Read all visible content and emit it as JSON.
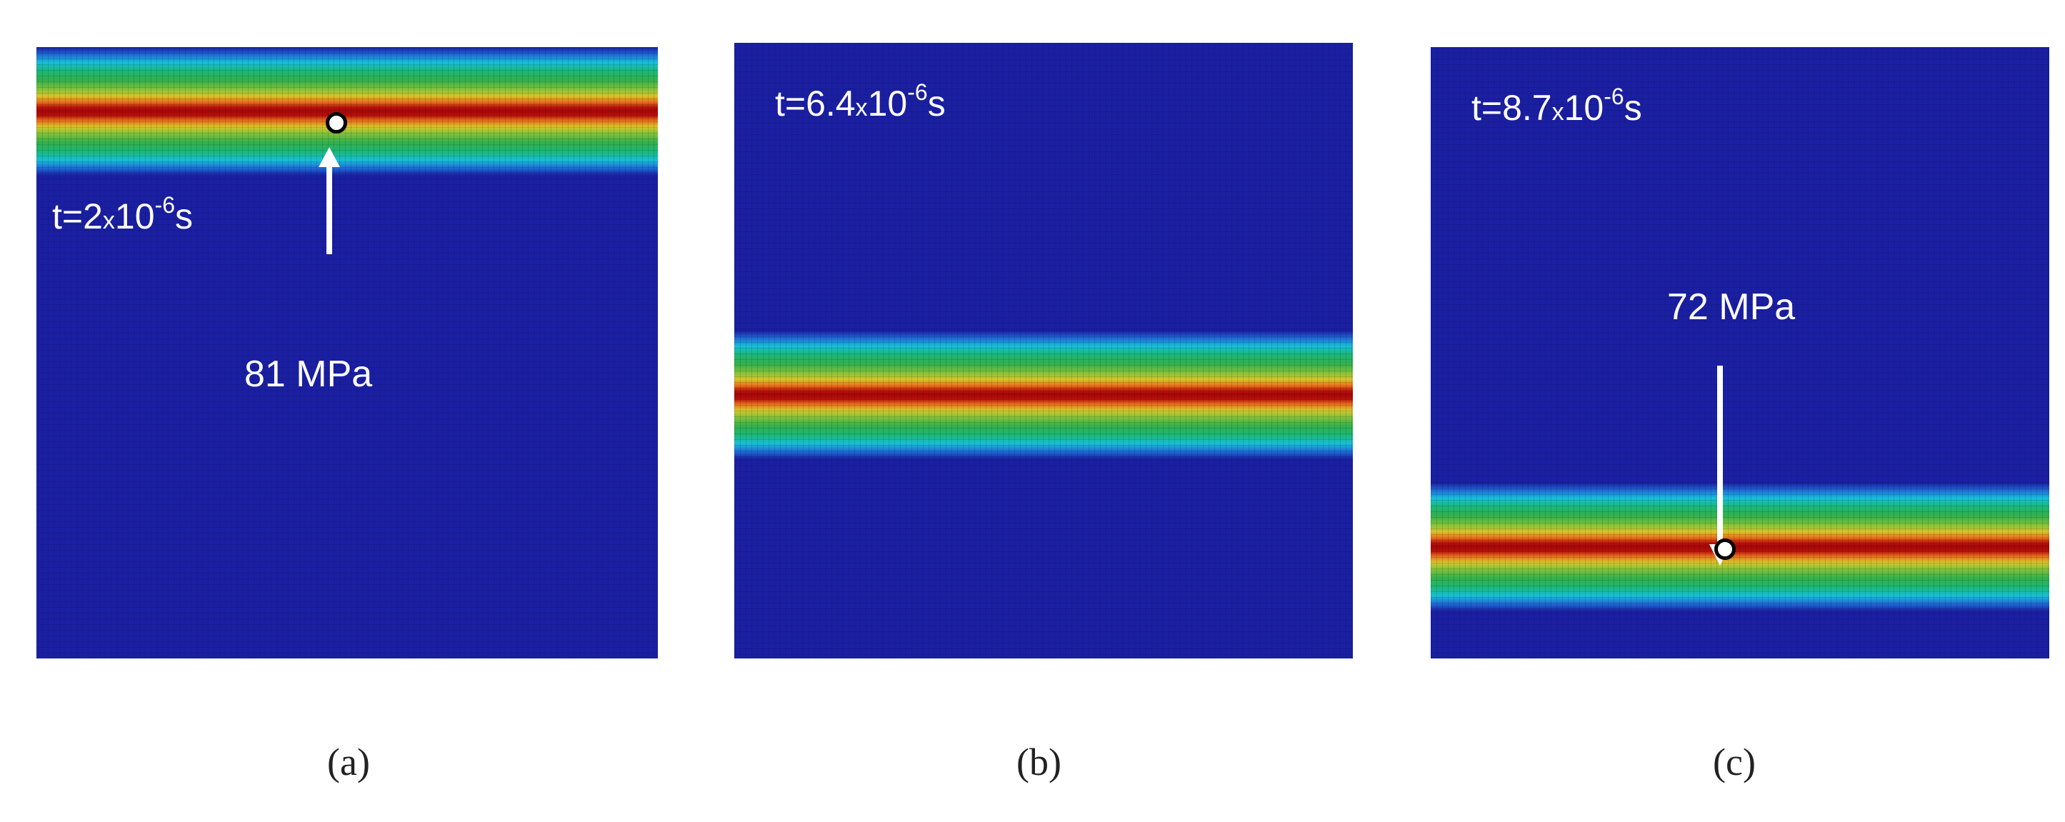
{
  "panels": [
    {
      "id": "a",
      "time_prefix": "t=2",
      "time_times": "x",
      "time_base": "10",
      "time_exponent": "-6",
      "time_unit": "s",
      "stress_label": "81 MPa",
      "caption": "(a)"
    },
    {
      "id": "b",
      "time_prefix": "t=6.4",
      "time_times": "x",
      "time_base": "10",
      "time_exponent": "-6",
      "time_unit": "s",
      "caption": "(b)"
    },
    {
      "id": "c",
      "time_prefix": "t=8.7",
      "time_times": "x",
      "time_base": "10",
      "time_exponent": "-6",
      "time_unit": "s",
      "stress_label": "72 MPa",
      "caption": "(c)"
    }
  ],
  "colors": {
    "background_field": "#1a1fa2",
    "wave_peak": "#a80808",
    "annotation": "#ffffff"
  },
  "icons": {
    "measurement_point": "circle-marker-icon",
    "pointer": "arrow-icon"
  }
}
